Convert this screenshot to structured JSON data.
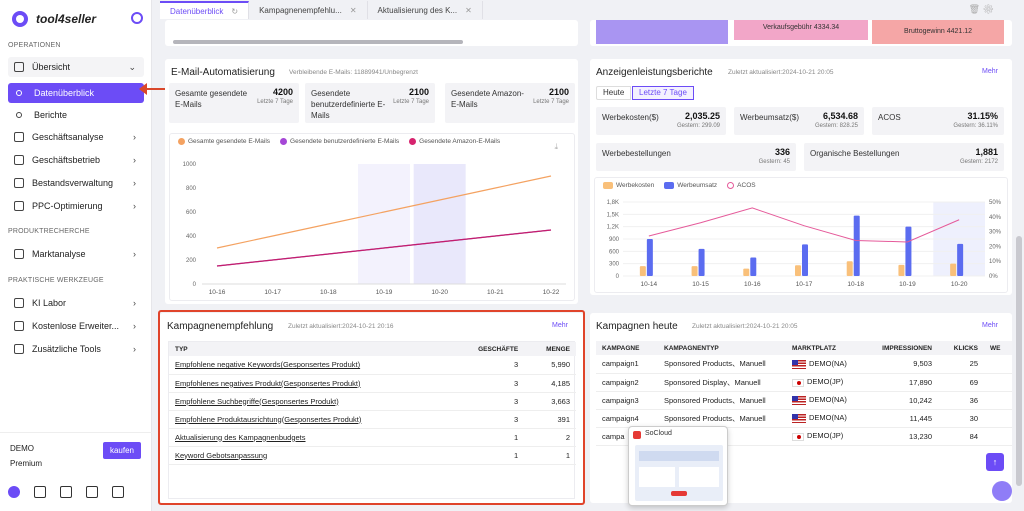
{
  "app": {
    "name": "tool4seller"
  },
  "sidebar": {
    "sec_operations": "OPERATIONEN",
    "overview": "Übersicht",
    "data_overview": "Datenüberblick",
    "reports": "Berichte",
    "items1": [
      {
        "label": "Geschäftsanalyse"
      },
      {
        "label": "Geschäftsbetrieb"
      },
      {
        "label": "Bestandsverwaltung"
      },
      {
        "label": "PPC-Optimierung"
      }
    ],
    "sec_product": "PRODUKTRECHERCHE",
    "market": "Marktanalyse",
    "sec_tools": "PRAKTISCHE WERKZEUGE",
    "items2": [
      {
        "label": "KI Labor"
      },
      {
        "label": "Kostenlose Erweiter..."
      },
      {
        "label": "Zusätzliche Tools"
      }
    ],
    "plan_name": "DEMO",
    "plan_level": "Premium",
    "buy": "kaufen"
  },
  "tabs": [
    "Datenüberblick",
    "Kampagnenempfehlu...",
    "Aktualisierung des K..."
  ],
  "topbars": {
    "fee_label": "Verkaufsgebühr 4334.34",
    "profit_label": "Bruttogewinn 4421.12"
  },
  "email": {
    "title": "E-Mail-Automatisierung",
    "sub": "Verbleibende E-Mails: 11889941/Unbegrenzt",
    "stats": [
      {
        "label": "Gesamte gesendete E-Mails",
        "value": "4200",
        "sub": "Letzte 7 Tage"
      },
      {
        "label": "Gesendete benutzerdefinierte E-Mails",
        "value": "2100",
        "sub": "Letzte 7 Tage"
      },
      {
        "label": "Gesendete Amazon-E-Mails",
        "value": "2100",
        "sub": "Letzte 7 Tage"
      }
    ],
    "legend": [
      "Gesamte gesendete E-Mails",
      "Gesendete benutzerdefinierte E-Mails",
      "Gesendete Amazon-E-Mails"
    ]
  },
  "ads": {
    "title": "Anzeigenleistungsberichte",
    "sub": "Zuletzt aktualisiert:2024-10-21 20:05",
    "more": "Mehr",
    "seg": [
      "Heute",
      "Letzte 7 Tage"
    ],
    "stats": [
      {
        "label": "Werbekosten($)",
        "value": "2,035.25",
        "sub": "Gestern: 299.09"
      },
      {
        "label": "Werbeumsatz($)",
        "value": "6,534.68",
        "sub": "Gestern: 828.25"
      },
      {
        "label": "ACOS",
        "value": "31.15%",
        "sub": "Gestern: 36.11%"
      },
      {
        "label": "Werbebestellungen",
        "value": "336",
        "sub": "Gestern: 45"
      },
      {
        "label": "Organische Bestellungen",
        "value": "1,881",
        "sub": "Gestern: 2172"
      }
    ],
    "legend": [
      "Werbekosten",
      "Werbeumsatz",
      "ACOS"
    ]
  },
  "chart_data": [
    {
      "type": "line",
      "x": [
        "10-16",
        "10-17",
        "10-18",
        "10-19",
        "10-20",
        "10-21",
        "10-22"
      ],
      "ylim": [
        0,
        1000
      ],
      "yticks": [
        0,
        200,
        400,
        600,
        800,
        1000
      ],
      "series": [
        {
          "name": "Gesamte gesendete E-Mails",
          "values": [
            300,
            400,
            500,
            600,
            700,
            800,
            900
          ]
        },
        {
          "name": "Gesendete benutzerdefinierte E-Mails",
          "values": [
            150,
            200,
            250,
            300,
            350,
            400,
            450
          ]
        },
        {
          "name": "Gesendete Amazon-E-Mails",
          "values": [
            150,
            200,
            250,
            300,
            350,
            400,
            450
          ]
        }
      ]
    },
    {
      "type": "bar",
      "x": [
        "10-14",
        "10-15",
        "10-16",
        "10-17",
        "10-18",
        "10-19",
        "10-20"
      ],
      "ylim": [
        0,
        1800
      ],
      "yticks": [
        "0",
        "300",
        "600",
        "900",
        "1,2K",
        "1,5K",
        "1,8K"
      ],
      "y2ticks": [
        "0%",
        "10%",
        "20%",
        "30%",
        "40%",
        "50%"
      ],
      "series": [
        {
          "name": "Werbekosten",
          "values": [
            240,
            240,
            180,
            260,
            360,
            270,
            300
          ]
        },
        {
          "name": "Werbeumsatz",
          "values": [
            900,
            660,
            450,
            770,
            1470,
            1200,
            780
          ]
        },
        {
          "name": "ACOS",
          "values": [
            27,
            36,
            46,
            34,
            24,
            23,
            38
          ]
        }
      ]
    }
  ],
  "rec": {
    "title": "Kampagnenempfehlung",
    "sub": "Zuletzt aktualisiert:2024-10-21 20:16",
    "more": "Mehr",
    "headers": [
      "TYP",
      "GESCHÄFTE",
      "MENGE"
    ],
    "rows": [
      {
        "typ": "Empfohlene negative Keywords(Gesponsertes Produkt)",
        "g": "3",
        "m": "5,990"
      },
      {
        "typ": "Empfohlenes negatives Produkt(Gesponsertes Produkt)",
        "g": "3",
        "m": "4,185"
      },
      {
        "typ": "Empfohlene Suchbegriffe(Gesponsertes Produkt)",
        "g": "3",
        "m": "3,663"
      },
      {
        "typ": "Empfohlene Produktausrichtung(Gesponsertes Produkt)",
        "g": "3",
        "m": "391"
      },
      {
        "typ": "Aktualisierung des Kampagnenbudgets",
        "g": "1",
        "m": "2"
      },
      {
        "typ": "Keyword Gebotsanpassung",
        "g": "1",
        "m": "1"
      }
    ]
  },
  "today": {
    "title": "Kampagnen heute",
    "sub": "Zuletzt aktualisiert:2024-10-21 20:05",
    "more": "Mehr",
    "headers": [
      "KAMPAGNE",
      "KAMPAGNENTYP",
      "MARKTPLATZ",
      "IMPRESSIONEN",
      "KLICKS",
      "WE"
    ],
    "rows": [
      {
        "c": "campaign1",
        "t": "Sponsored Products、Manuell",
        "m": "DEMO(NA)",
        "i": "9,503",
        "k": "25"
      },
      {
        "c": "campaign2",
        "t": "Sponsored Display、Manuell",
        "m": "DEMO(JP)",
        "i": "17,890",
        "k": "69"
      },
      {
        "c": "campaign3",
        "t": "Sponsored Products、Manuell",
        "m": "DEMO(NA)",
        "i": "10,242",
        "k": "36"
      },
      {
        "c": "campaign4",
        "t": "Sponsored Products、Manuell",
        "m": "DEMO(NA)",
        "i": "11,445",
        "k": "30"
      },
      {
        "c": "campa",
        "t": "",
        "m": "DEMO(JP)",
        "i": "13,230",
        "k": "84"
      }
    ]
  },
  "popup": {
    "title": "SoCloud"
  }
}
